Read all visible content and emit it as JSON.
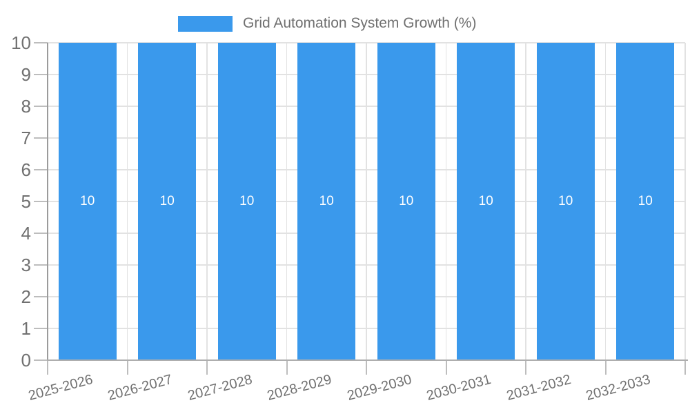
{
  "chart_data": {
    "type": "bar",
    "title": "Grid Automation System Growth (%)",
    "legend": {
      "label": "Grid Automation System Growth (%)",
      "position": "top"
    },
    "categories": [
      "2025-2026",
      "2026-2027",
      "2027-2028",
      "2028-2029",
      "2029-2030",
      "2030-2031",
      "2031-2032",
      "2032-2033"
    ],
    "values": [
      10,
      10,
      10,
      10,
      10,
      10,
      10,
      10
    ],
    "bar_value_labels": [
      "10",
      "10",
      "10",
      "10",
      "10",
      "10",
      "10",
      "10"
    ],
    "xlabel": "",
    "ylabel": "",
    "ylim": [
      0,
      10
    ],
    "yticks": [
      0,
      1,
      2,
      3,
      4,
      5,
      6,
      7,
      8,
      9,
      10
    ],
    "grid": true,
    "x_label_rotation_deg": -15,
    "colors": {
      "bar": "#3A99EC",
      "grid": "#e2e2e2",
      "tick": "#bdbdbd",
      "axis": "#9b9b9b",
      "axis_bottom": "#aeaeae",
      "text": "#707070",
      "bar_label": "#ffffff",
      "background": "#ffffff"
    }
  }
}
